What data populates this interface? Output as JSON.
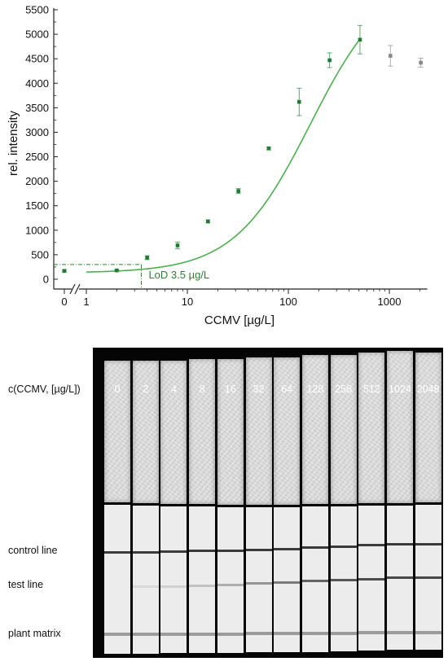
{
  "chart_data": {
    "type": "scatter",
    "xlabel": "CCMV [µg/L]",
    "ylabel": "rel. intensity",
    "xscale": "log with broken axis at zero",
    "ylim": [
      -200,
      5500
    ],
    "xlim": [
      1,
      2048
    ],
    "x_ticks": [
      "0",
      "1",
      "10",
      "100",
      "1000"
    ],
    "y_ticks": [
      0,
      500,
      1000,
      1500,
      2000,
      2500,
      3000,
      3500,
      4000,
      4500,
      5000,
      5500
    ],
    "grid": false,
    "colors": {
      "fit": "#4caf50",
      "points": "#1e7d32",
      "excluded": "#888888",
      "lod": "#2e7d32"
    },
    "points": [
      {
        "x": 0,
        "y": 170,
        "err": 20
      },
      {
        "x": 2,
        "y": 180,
        "err": 15
      },
      {
        "x": 4,
        "y": 440,
        "err": 40
      },
      {
        "x": 8,
        "y": 690,
        "err": 70
      },
      {
        "x": 16,
        "y": 1180,
        "err": 30
      },
      {
        "x": 32,
        "y": 1800,
        "err": 50
      },
      {
        "x": 64,
        "y": 2670,
        "err": 30
      },
      {
        "x": 128,
        "y": 3620,
        "err": 280
      },
      {
        "x": 256,
        "y": 4470,
        "err": 150
      },
      {
        "x": 512,
        "y": 4890,
        "err": 290
      }
    ],
    "excluded_points": [
      {
        "x": 1024,
        "y": 4560,
        "err": 210
      },
      {
        "x": 2048,
        "y": 4420,
        "err": 90
      }
    ],
    "fit": {
      "bottom": 130,
      "top": 6200,
      "ec50": 165,
      "hill": 1.15,
      "x_range": [
        1,
        520
      ]
    },
    "lod": {
      "x": 3.5,
      "y": 300,
      "label": "LoD 3.5 µg/L"
    }
  },
  "photo": {
    "header_label": "c(CCMV, [µg/L])",
    "concentrations": [
      "0",
      "2",
      "4",
      "8",
      "16",
      "32",
      "64",
      "128",
      "256",
      "512",
      "1024",
      "2048"
    ],
    "row_labels": {
      "control": "control line",
      "test": "test line",
      "matrix": "plant matrix"
    },
    "test_band_intensity": [
      0.0,
      0.05,
      0.1,
      0.18,
      0.3,
      0.45,
      0.6,
      0.75,
      0.82,
      0.88,
      0.9,
      0.9
    ]
  }
}
